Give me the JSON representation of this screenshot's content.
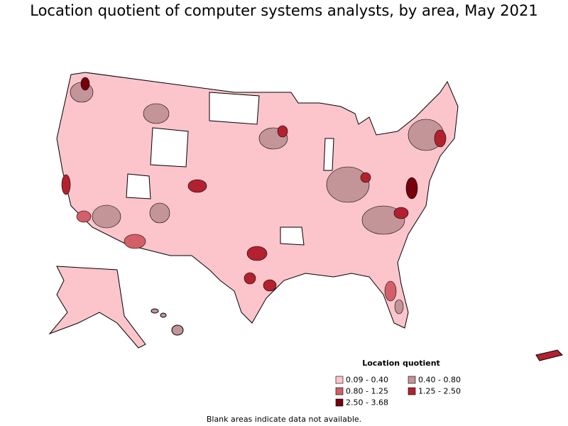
{
  "title": "Location quotient of computer systems analysts, by area, May 2021",
  "legend": {
    "title": "Location quotient",
    "items": [
      {
        "label": "0.09 - 0.40",
        "color": "#fbc5cb"
      },
      {
        "label": "0.40 - 0.80",
        "color": "#c39498"
      },
      {
        "label": "0.80 - 1.25",
        "color": "#d35f68"
      },
      {
        "label": "1.25 - 2.50",
        "color": "#b3212f"
      },
      {
        "label": "2.50 - 3.68",
        "color": "#76000c"
      }
    ]
  },
  "footnote": "Blank areas indicate data not available."
}
